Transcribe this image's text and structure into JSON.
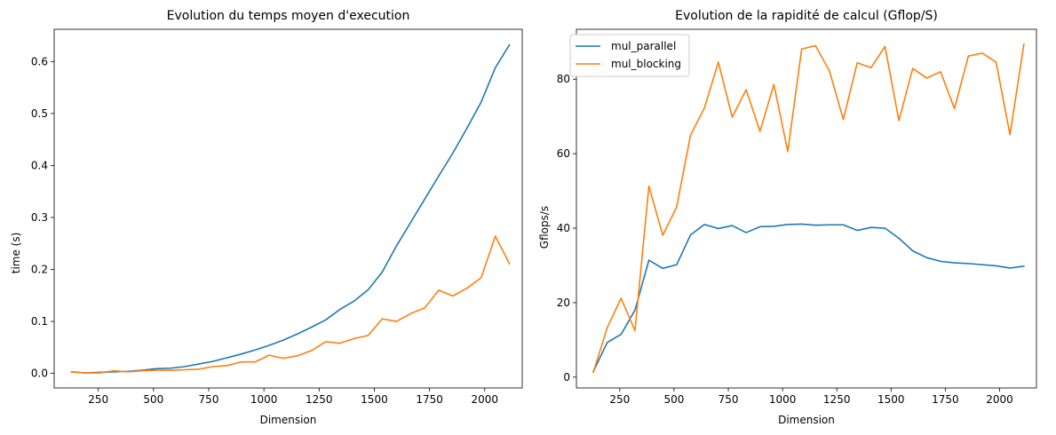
{
  "chart_data": [
    {
      "type": "line",
      "title": "Evolution du temps moyen d'execution",
      "xlabel": "Dimension",
      "ylabel": "time (s)",
      "xlim": [
        50,
        2170
      ],
      "ylim": [
        -0.028,
        0.662
      ],
      "xticks": [
        250,
        500,
        750,
        1000,
        1250,
        1500,
        1750,
        2000
      ],
      "yticks": [
        0.0,
        0.1,
        0.2,
        0.3,
        0.4,
        0.5,
        0.6
      ],
      "ytick_labels": [
        "0.0",
        "0.1",
        "0.2",
        "0.3",
        "0.4",
        "0.5",
        "0.6"
      ],
      "grid": false,
      "legend": null,
      "x": [
        128,
        192,
        256,
        320,
        384,
        448,
        512,
        576,
        640,
        704,
        768,
        832,
        896,
        960,
        1024,
        1088,
        1152,
        1216,
        1280,
        1344,
        1408,
        1472,
        1536,
        1600,
        1664,
        1728,
        1792,
        1856,
        1920,
        1984,
        2048,
        2112
      ],
      "series": [
        {
          "name": "mul_parallel",
          "color": "#1f77b4",
          "values": [
            0.003,
            0.001,
            0.002,
            0.003,
            0.004,
            0.006,
            0.009,
            0.01,
            0.013,
            0.018,
            0.023,
            0.03,
            0.037,
            0.045,
            0.054,
            0.064,
            0.076,
            0.089,
            0.103,
            0.123,
            0.139,
            0.161,
            0.195,
            0.245,
            0.29,
            0.335,
            0.38,
            0.424,
            0.472,
            0.522,
            0.588,
            0.632
          ]
        },
        {
          "name": "mul_blocking",
          "color": "#ff7f0e",
          "values": [
            0.003,
            0.001,
            0.001,
            0.005,
            0.003,
            0.005,
            0.006,
            0.006,
            0.007,
            0.008,
            0.013,
            0.015,
            0.022,
            0.022,
            0.035,
            0.029,
            0.034,
            0.044,
            0.061,
            0.058,
            0.067,
            0.073,
            0.105,
            0.1,
            0.115,
            0.126,
            0.16,
            0.149,
            0.164,
            0.184,
            0.264,
            0.211
          ]
        }
      ]
    },
    {
      "type": "line",
      "title": "Evolution de la rapidité de calcul (Gflop/S)",
      "xlabel": "Dimension",
      "ylabel": "Gflops/s",
      "xlim": [
        50,
        2170
      ],
      "ylim": [
        -2.9,
        93.4
      ],
      "xticks": [
        250,
        500,
        750,
        1000,
        1250,
        1500,
        1750,
        2000
      ],
      "yticks": [
        0,
        20,
        40,
        60,
        80
      ],
      "ytick_labels": [
        "0",
        "20",
        "40",
        "60",
        "80"
      ],
      "grid": false,
      "legend": "top-left",
      "x": [
        128,
        192,
        256,
        320,
        384,
        448,
        512,
        576,
        640,
        704,
        768,
        832,
        896,
        960,
        1024,
        1088,
        1152,
        1216,
        1280,
        1344,
        1408,
        1472,
        1536,
        1600,
        1664,
        1728,
        1792,
        1856,
        1920,
        1984,
        2048,
        2112
      ],
      "series": [
        {
          "name": "mul_parallel",
          "color": "#1f77b4",
          "values": [
            1.5,
            9.3,
            11.5,
            18.0,
            31.4,
            29.2,
            30.2,
            38.2,
            41.0,
            39.9,
            40.7,
            38.8,
            40.4,
            40.5,
            41.0,
            41.1,
            40.8,
            40.9,
            40.9,
            39.4,
            40.2,
            40.0,
            37.3,
            33.9,
            32.1,
            31.1,
            30.7,
            30.5,
            30.2,
            29.9,
            29.3,
            29.8
          ]
        },
        {
          "name": "mul_blocking",
          "color": "#ff7f0e",
          "values": [
            1.3,
            13.3,
            21.2,
            12.5,
            51.3,
            38.1,
            45.7,
            65.0,
            72.3,
            84.6,
            69.8,
            77.2,
            66.0,
            78.6,
            60.6,
            88.1,
            89.0,
            82.2,
            69.2,
            84.4,
            83.1,
            88.8,
            68.9,
            82.9,
            80.3,
            82.0,
            72.1,
            86.2,
            87.0,
            84.6,
            65.1,
            89.4
          ]
        }
      ]
    }
  ],
  "legend_labels": [
    "mul_parallel",
    "mul_blocking"
  ]
}
